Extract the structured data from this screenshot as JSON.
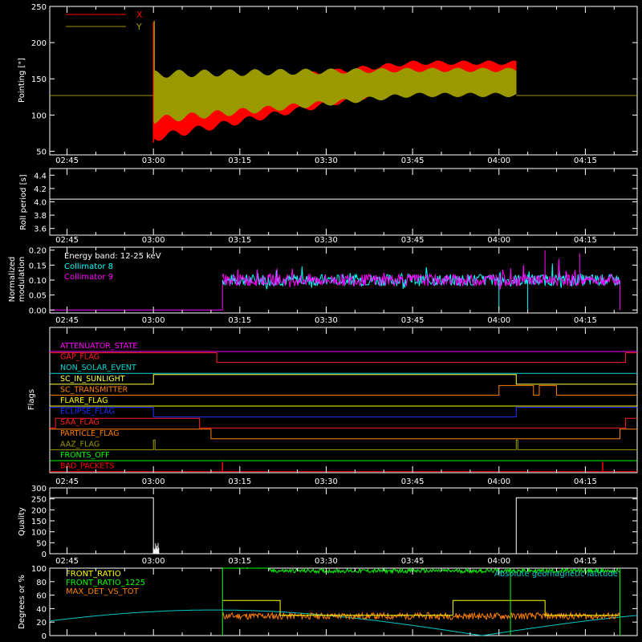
{
  "time_ticks": [
    "02:45",
    "03:00",
    "03:15",
    "03:30",
    "03:45",
    "04:00",
    "04:15"
  ],
  "chart_data": [
    {
      "type": "line",
      "ylabel": "Pointing [\"]",
      "yticks": [
        "250",
        "200",
        "150",
        "100",
        "50"
      ],
      "ylim": [
        45,
        250
      ],
      "series": [
        {
          "name": "X",
          "color": "#ff0000"
        },
        {
          "name": "Y",
          "color": "#9a9a00"
        }
      ],
      "x_start": "03:00",
      "x_end": "04:03",
      "x_center_start": [
        100,
        155
      ],
      "x_center_end": [
        155,
        150
      ],
      "y_center_start": [
        165,
        125
      ],
      "y_center_end": [
        125,
        145
      ],
      "amp_start": [
        37,
        37
      ],
      "amp_end": [
        20,
        20
      ],
      "baseline": 127
    },
    {
      "type": "line",
      "ylabel": "Roll period [s]",
      "yticks": [
        "4.4",
        "4.2",
        "4.0",
        "3.8",
        "3.6"
      ],
      "ylim": [
        3.5,
        4.5
      ],
      "value": 4.04,
      "color": "#ffffff"
    },
    {
      "type": "line",
      "ylabel": "Normalized modulation",
      "ylabel_lines": [
        "Normalized",
        "modulation"
      ],
      "yticks": [
        "0.20",
        "0.15",
        "0.10",
        "0.05",
        "0.00"
      ],
      "ylim": [
        -0.01,
        0.21
      ],
      "annotation": "Energy band: 12-25 keV",
      "series": [
        {
          "name": "Collimator 8",
          "color": "#00ffff"
        },
        {
          "name": "Collimator 9",
          "color": "#ff00ff"
        }
      ],
      "start": "03:12",
      "end": "04:21",
      "mean": 0.1,
      "dropouts": [
        "04:00",
        "04:05"
      ]
    },
    {
      "type": "line",
      "ylabel": "Flags",
      "flags": [
        {
          "name": "ATTENUATOR_STATE",
          "color": "#ff00ff"
        },
        {
          "name": "GAP_FLAG",
          "color": "#ff2020"
        },
        {
          "name": "NON_SOLAR_EVENT",
          "color": "#00d8d8"
        },
        {
          "name": "SC_IN_SUNLIGHT",
          "color": "#ffff40"
        },
        {
          "name": "SC_TRANSMITTER",
          "color": "#ff8000"
        },
        {
          "name": "FLARE_FLAG",
          "color": "#ffff00"
        },
        {
          "name": "ECLIPSE_FLAG",
          "color": "#2030ff"
        },
        {
          "name": "SAA_FLAG",
          "color": "#ff2020"
        },
        {
          "name": "PARTICLE_FLAG",
          "color": "#ff8000"
        },
        {
          "name": "AAZ_FLAG",
          "color": "#9a9a00"
        },
        {
          "name": "FRONTS_OFF",
          "color": "#00ff00"
        },
        {
          "name": "BAD_PACKETS",
          "color": "#ff0000"
        }
      ]
    },
    {
      "type": "line",
      "ylabel": "Quality",
      "yticks": [
        "300",
        "250",
        "200",
        "150",
        "100",
        "50",
        "0"
      ],
      "ylim": [
        0,
        300
      ],
      "level": 255,
      "color": "#ffffff"
    },
    {
      "type": "line",
      "ylabel": "Degrees or %",
      "yticks": [
        "100",
        "80",
        "60",
        "40",
        "20",
        "0"
      ],
      "ylim": [
        0,
        100
      ],
      "series": [
        {
          "name": "FRONT_RATIO",
          "color": "#ffff00"
        },
        {
          "name": "FRONT_RATIO_1225",
          "color": "#00ff00"
        },
        {
          "name": "MAX_DET_VS_TOT",
          "color": "#ff8000"
        },
        {
          "name": "Absolute geomagnetic latitude",
          "color": "#00c8c8"
        }
      ]
    }
  ]
}
